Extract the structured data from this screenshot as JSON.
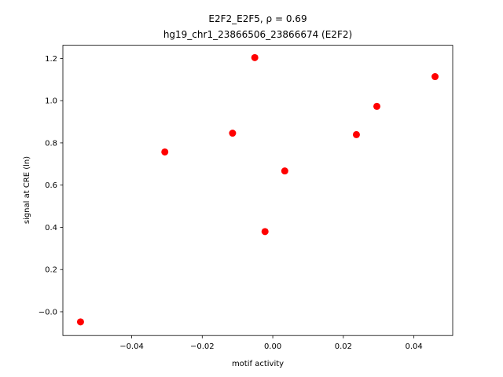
{
  "chart_data": {
    "type": "scatter",
    "title": "E2F2_E2F5, ρ = 0.69",
    "subtitle": "hg19_chr1_23866506_23866674 (E2F2)",
    "x_label": "motif activity",
    "y_label": "signal at CRE (ln)",
    "x": [
      -0.0545,
      -0.0306,
      -0.0114,
      -0.0051,
      -0.0022,
      0.0034,
      0.0237,
      0.0295,
      0.046
    ],
    "values": [
      -0.048,
      0.757,
      0.846,
      1.204,
      0.38,
      0.667,
      0.839,
      0.973,
      1.114
    ],
    "color": "#ff0000",
    "xlim": [
      -0.0595,
      0.051
    ],
    "ylim": [
      -0.1125,
      1.2625
    ],
    "xticks": [
      {
        "value": -0.04,
        "label": "−0.04"
      },
      {
        "value": -0.02,
        "label": "−0.02"
      },
      {
        "value": 0,
        "label": "0.00"
      },
      0.02,
      0.04
    ],
    "yticks": [
      {
        "value": 0,
        "label": "−0.0"
      },
      0.2,
      0.4,
      0.6,
      0.8,
      {
        "value": 1,
        "label": "1.0"
      },
      1.2
    ],
    "grid": false
  }
}
